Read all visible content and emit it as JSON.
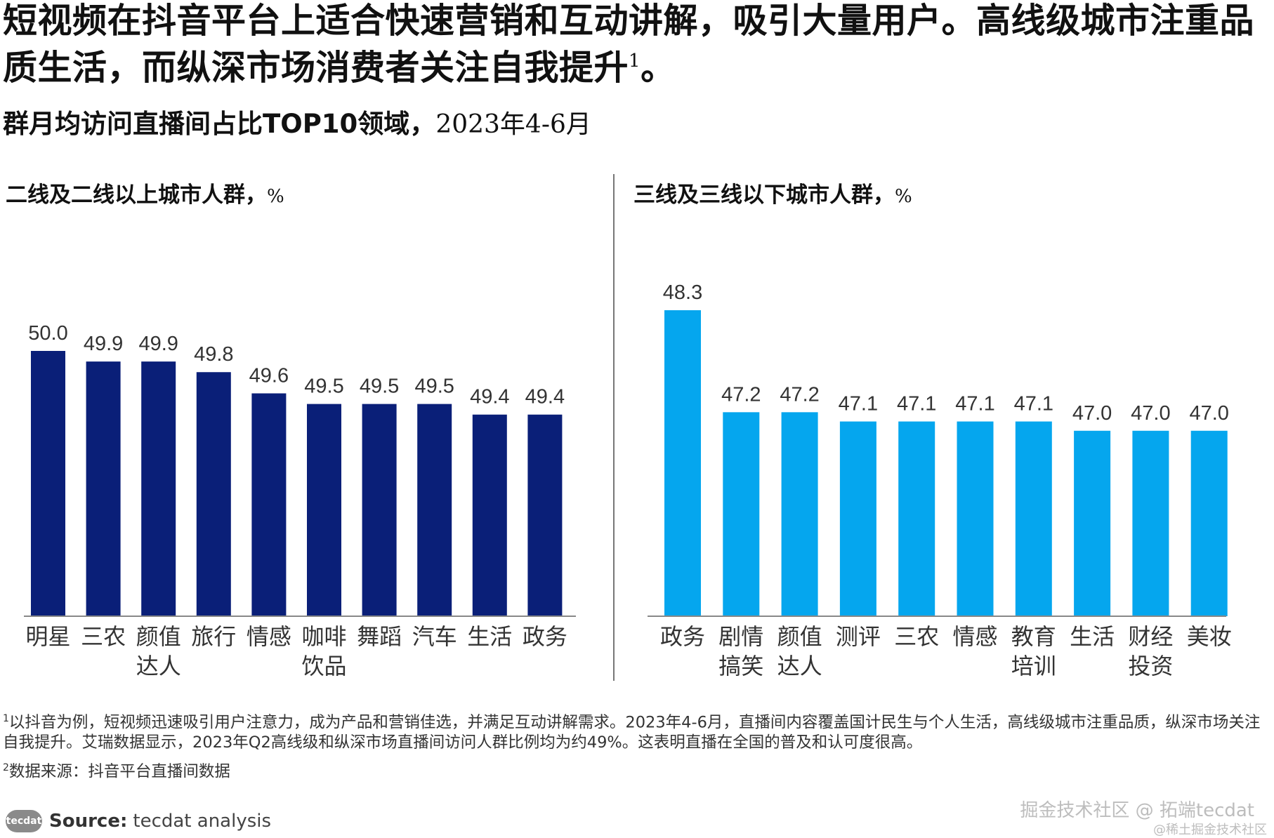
{
  "headline": "短视频在抖音平台上适合快速营销和互动讲解，吸引大量用户。高线级城市注重品质生活，而纵深市场消费者关注自我提升",
  "headline_sup": "1",
  "headline_end": "。",
  "subtitle_bold": "群月均访问直播间占比TOP10领域，",
  "subtitle_dates": "2023年4-6月",
  "colors": {
    "left_bars": "#0a1f78",
    "right_bars": "#05a6ee",
    "axis": "#888888",
    "text": "#333333"
  },
  "chart_data": [
    {
      "type": "bar",
      "title": "二线及二线以上城市人群，",
      "unit": "%",
      "categories": [
        [
          "明星"
        ],
        [
          "三农"
        ],
        [
          "颜值",
          "达人"
        ],
        [
          "旅行"
        ],
        [
          "情感"
        ],
        [
          "咖啡",
          "饮品"
        ],
        [
          "舞蹈"
        ],
        [
          "汽车"
        ],
        [
          "生活"
        ],
        [
          "政务"
        ]
      ],
      "values": [
        50.0,
        49.9,
        49.9,
        49.8,
        49.6,
        49.5,
        49.5,
        49.5,
        49.4,
        49.4
      ],
      "labels": [
        "50.0",
        "49.9",
        "49.9",
        "49.8",
        "49.6",
        "49.5",
        "49.5",
        "49.5",
        "49.4",
        "49.4"
      ],
      "ylim": [
        47.5,
        50.0
      ],
      "grid": false
    },
    {
      "type": "bar",
      "title": "三线及三线以下城市人群，",
      "unit": "%",
      "categories": [
        [
          "政务"
        ],
        [
          "剧情",
          "搞笑"
        ],
        [
          "颜值",
          "达人"
        ],
        [
          "测评"
        ],
        [
          "三农"
        ],
        [
          "情感"
        ],
        [
          "教育",
          "培训"
        ],
        [
          "生活"
        ],
        [
          "财经",
          "投资"
        ],
        [
          "美妆"
        ]
      ],
      "values": [
        48.3,
        47.2,
        47.2,
        47.1,
        47.1,
        47.1,
        47.1,
        47.0,
        47.0,
        47.0
      ],
      "labels": [
        "48.3",
        "47.2",
        "47.2",
        "47.1",
        "47.1",
        "47.1",
        "47.1",
        "47.0",
        "47.0",
        "47.0"
      ],
      "ylim": [
        45.0,
        48.3
      ],
      "grid": false
    }
  ],
  "footnotes": [
    {
      "sup": "1",
      "text": "以抖音为例，短视频迅速吸引用户注意力，成为产品和营销佳选，并满足互动讲解需求。2023年4-6月，直播间内容覆盖国计民生与个人生活，高线级城市注重品质，纵深市场关注自我提升。艾瑞数据显示，2023年Q2高线级和纵深市场直播间访问人群比例均为约49%。这表明直播在全国的普及和认可度很高。"
    },
    {
      "sup": "2",
      "text": "数据来源：抖音平台直播间数据"
    }
  ],
  "source": {
    "logo": "tecdat",
    "label": "Source:",
    "text": "tecdat analysis"
  },
  "watermark": {
    "line1": "掘金技术社区 @ 拓端tecdat",
    "line2": "@稀土掘金技术社区"
  }
}
